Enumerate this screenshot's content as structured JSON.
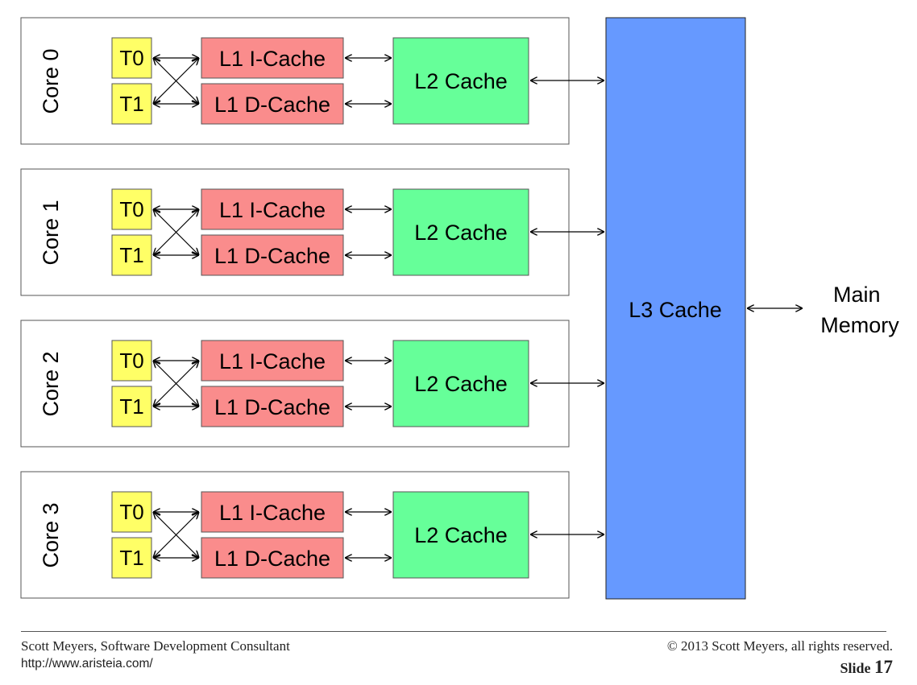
{
  "cores": [
    {
      "label": "Core 0",
      "t0": "T0",
      "t1": "T1",
      "l1i": "L1 I-Cache",
      "l1d": "L1 D-Cache",
      "l2": "L2 Cache"
    },
    {
      "label": "Core 1",
      "t0": "T0",
      "t1": "T1",
      "l1i": "L1 I-Cache",
      "l1d": "L1 D-Cache",
      "l2": "L2 Cache"
    },
    {
      "label": "Core 2",
      "t0": "T0",
      "t1": "T1",
      "l1i": "L1 I-Cache",
      "l1d": "L1 D-Cache",
      "l2": "L2 Cache"
    },
    {
      "label": "Core 3",
      "t0": "T0",
      "t1": "T1",
      "l1i": "L1 I-Cache",
      "l1d": "L1 D-Cache",
      "l2": "L2 Cache"
    }
  ],
  "l3": "L3 Cache",
  "memory": {
    "line1": "Main",
    "line2": "Memory"
  },
  "colors": {
    "thread": "#ffff66",
    "l1": "#fa8c8c",
    "l2": "#66ff99",
    "l3": "#6699ff"
  },
  "footer": {
    "author": "Scott Meyers, Software Development Consultant",
    "url": "http://www.aristeia.com/",
    "copyright": "© 2013 Scott Meyers, all rights reserved.",
    "slide_label": "Slide",
    "slide_number": "17"
  }
}
